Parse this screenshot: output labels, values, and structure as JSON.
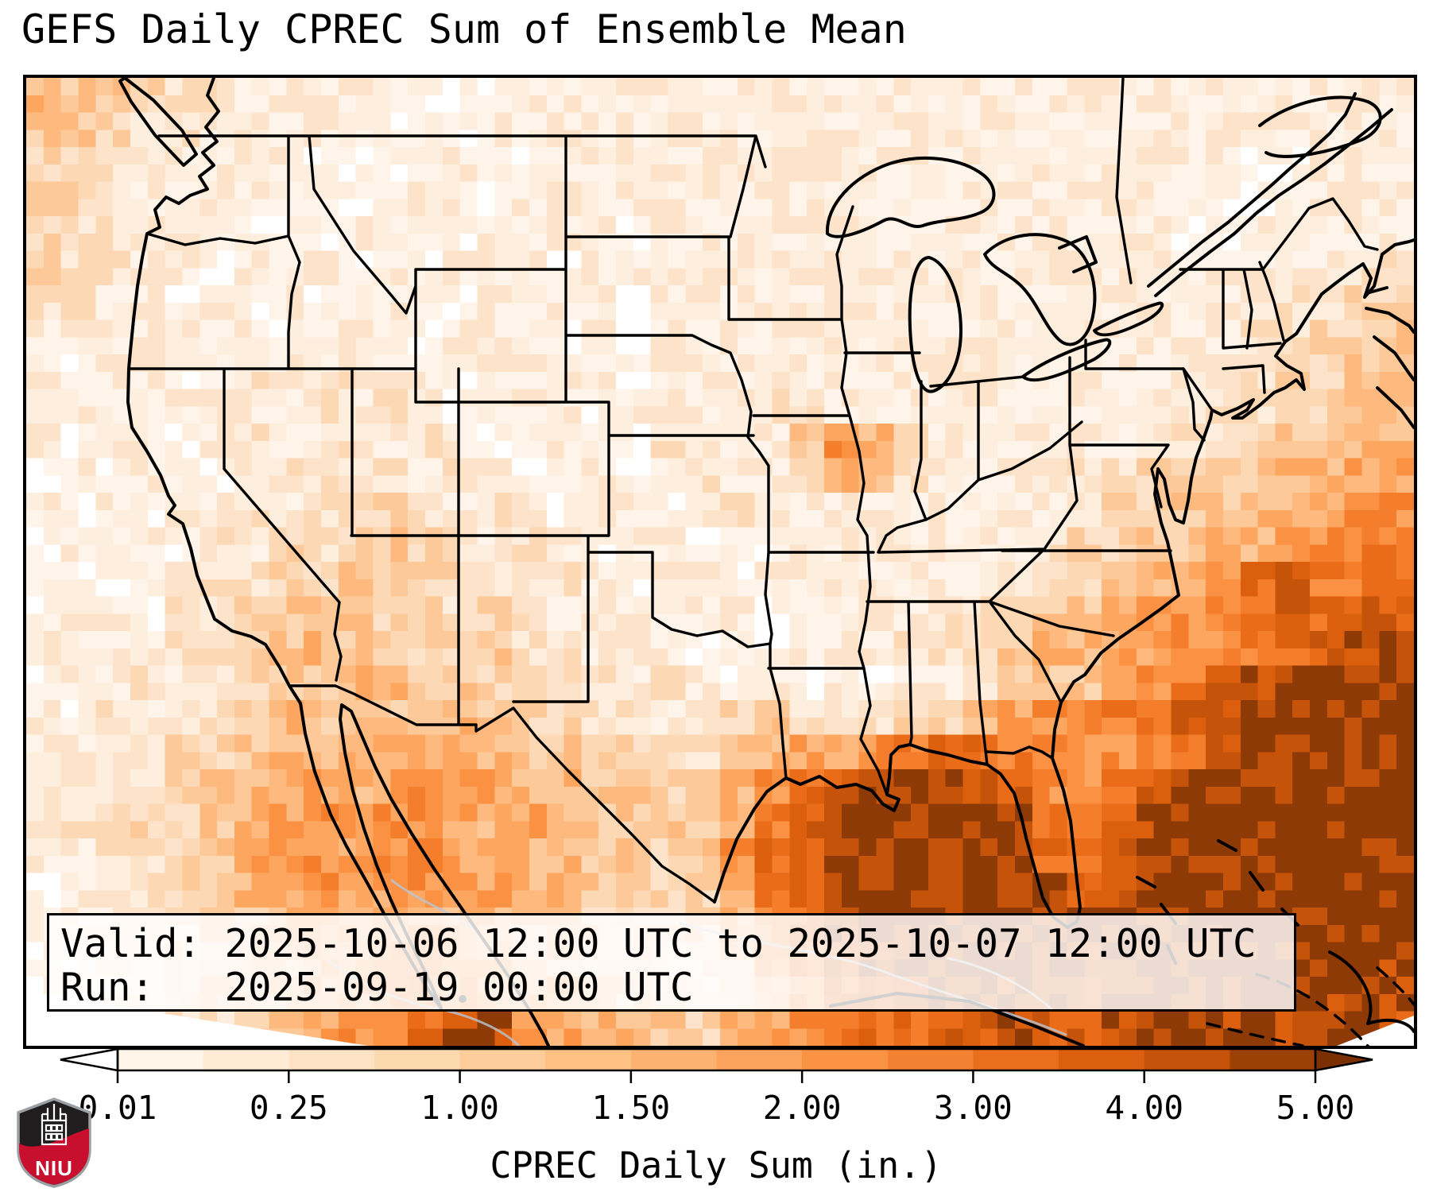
{
  "title": "GEFS Daily CPREC Sum of Ensemble Mean",
  "info_box": {
    "valid_line": "Valid: 2025-10-06 12:00 UTC to 2025-10-07 12:00 UTC",
    "run_line": "Run:   2025-09-19 00:00 UTC"
  },
  "colorbar": {
    "label": "CPREC Daily Sum (in.)",
    "tick_labels": [
      "0.01",
      "0.25",
      "1.00",
      "1.50",
      "2.00",
      "3.00",
      "4.00",
      "5.00"
    ],
    "tick_values": [
      0.01,
      0.25,
      1.0,
      1.5,
      2.0,
      3.0,
      4.0,
      5.0
    ],
    "segment_colors": [
      "#fff5e8",
      "#feecd7",
      "#fde3c3",
      "#fdd9af",
      "#fdcd9b",
      "#fdc085",
      "#fdb271",
      "#fda45c",
      "#fb9345",
      "#f48131",
      "#ea6f1d",
      "#dc5f10",
      "#c65209",
      "#9c4005"
    ],
    "under_color": "#ffffff",
    "over_color": "#7a3003",
    "outline_color": "#000000"
  },
  "logo": {
    "text": "NIU",
    "shield_black": "#1f1d1e",
    "banner_red": "#c8102e",
    "border_gray": "#9aa0a3"
  },
  "chart_data": {
    "type": "heatmap",
    "title": "GEFS Daily CPREC Sum of Ensemble Mean",
    "units": "in.",
    "legend_ticks": [
      0.01,
      0.25,
      1.0,
      1.5,
      2.0,
      3.0,
      4.0,
      5.0
    ],
    "palette": [
      "#ffffff",
      "#fff4ea",
      "#fdeedd",
      "#fde3c9",
      "#fdd8b4",
      "#fdc999",
      "#fdb97e",
      "#fda660",
      "#fb9143",
      "#f57e2c",
      "#ea6c18",
      "#dc5f0e",
      "#c5540a",
      "#8e3a06"
    ],
    "grid": [
      "6554332222111122222222222222222222222222",
      "5543322221111222222222222222222222222222",
      "4433222211112212222222222222222222211222",
      "4432222111122122222222222222222222112222",
      "4332221112211222212222222222222221122222",
      "4332212121212221222222222222222221222233",
      "3322121212221212202222222222222222223344",
      "2222212123212221202222222222222222233445",
      "2122123223221222212223222222222222334455",
      "1221222232321222123223322222222222334455",
      "2122123123232122213222586422222233345566",
      "1212212333323212212322465322223344556677",
      "2121223234432321221233222222223445566788",
      "1222132434543232122121222222234455667899",
      "21122334455443232122122222223445678ac99a",
      "1221334556453432321221222233455678 9ababb",
      "2122334565544533232121222334566778 89abcd",
      "1223234546655443323212121223455689bcdddd",
      "2132334656566544332245323446788 9abcddddd",
      "2233445666677655443356778 9aa98889acdddddd",
      "223345667678876655446 8abcddcb889bddddddd",
      "2334456787887676555579bdddddc99acddddddd",
      "22334578878877665545 8abddddddaabdddddddd",
      "123345678778776654447 9bdddddddbcdddddddd",
      "12233456767766554434 68acddddddcddddddddd",
      "1123345566776655443357 9bcdddddcddddddddc",
      "112234556788776654434 68abcddcdcddddddcdc",
      "01123356789acc87665467 89aabbcbbcddcdccdb"
    ]
  }
}
